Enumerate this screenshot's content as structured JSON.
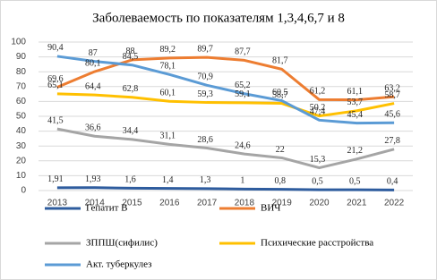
{
  "chart_data": {
    "type": "line",
    "title": "Заболеваемость по показателям 1,3,4,6,7 и 8",
    "categories": [
      "2013",
      "2014",
      "2015",
      "2016",
      "2017",
      "2018",
      "2019",
      "2020",
      "2021",
      "2022"
    ],
    "ylim": [
      0,
      100
    ],
    "yticks": [
      0,
      10,
      20,
      30,
      40,
      50,
      60,
      70,
      80,
      90,
      100
    ],
    "grid": true,
    "legend": "bottom",
    "series": [
      {
        "name": "Гепатит В",
        "color": "#2e5c9e",
        "values": [
          1.91,
          1.93,
          1.6,
          1.4,
          1.3,
          1,
          0.8,
          0.5,
          0.5,
          0.4
        ],
        "value_labels": [
          "1,91",
          "1,93",
          "1,6",
          "1,4",
          "1,3",
          "1",
          "0,8",
          "0,5",
          "0,5",
          "0,4"
        ]
      },
      {
        "name": "ВИЧ",
        "color": "#ed7d31",
        "values": [
          69.6,
          80.1,
          88,
          89.2,
          89.7,
          87.7,
          81.7,
          61.2,
          61.1,
          63.2
        ],
        "value_labels": [
          "69,6",
          "80,1",
          "88",
          "89,2",
          "89,7",
          "87,7",
          "81,7",
          "61,2",
          "61,1",
          "63,2"
        ]
      },
      {
        "name": "ЗППШ(сифилис)",
        "color": "#a5a5a5",
        "values": [
          41.5,
          36.6,
          34.4,
          31.1,
          28.6,
          24.6,
          22,
          15.3,
          21.2,
          27.8
        ],
        "value_labels": [
          "41,5",
          "36,6",
          "34,4",
          "31,1",
          "28,6",
          "24,6",
          "22",
          "15,3",
          "21,2",
          "27,8"
        ]
      },
      {
        "name": "Психические расстройства",
        "color": "#ffc000",
        "values": [
          65.1,
          64.4,
          62.8,
          60.1,
          59.3,
          59.1,
          58.7,
          50.2,
          53.7,
          58.7
        ],
        "value_labels": [
          "65,1",
          "64,4",
          "62,8",
          "60,1",
          "59,3",
          "59,1",
          "58,7",
          "50,2",
          "53,7",
          "58,7"
        ]
      },
      {
        "name": "Акт. туберкулез",
        "color": "#5b9bd5",
        "values": [
          90.4,
          87,
          84.5,
          78.1,
          70.9,
          65.2,
          60.5,
          47.4,
          45.4,
          45.6
        ],
        "value_labels": [
          "90,4",
          "87",
          "84,5",
          "78,1",
          "70,9",
          "65,2",
          "60,5",
          "47,4",
          "45,4",
          "45,6"
        ]
      }
    ]
  }
}
